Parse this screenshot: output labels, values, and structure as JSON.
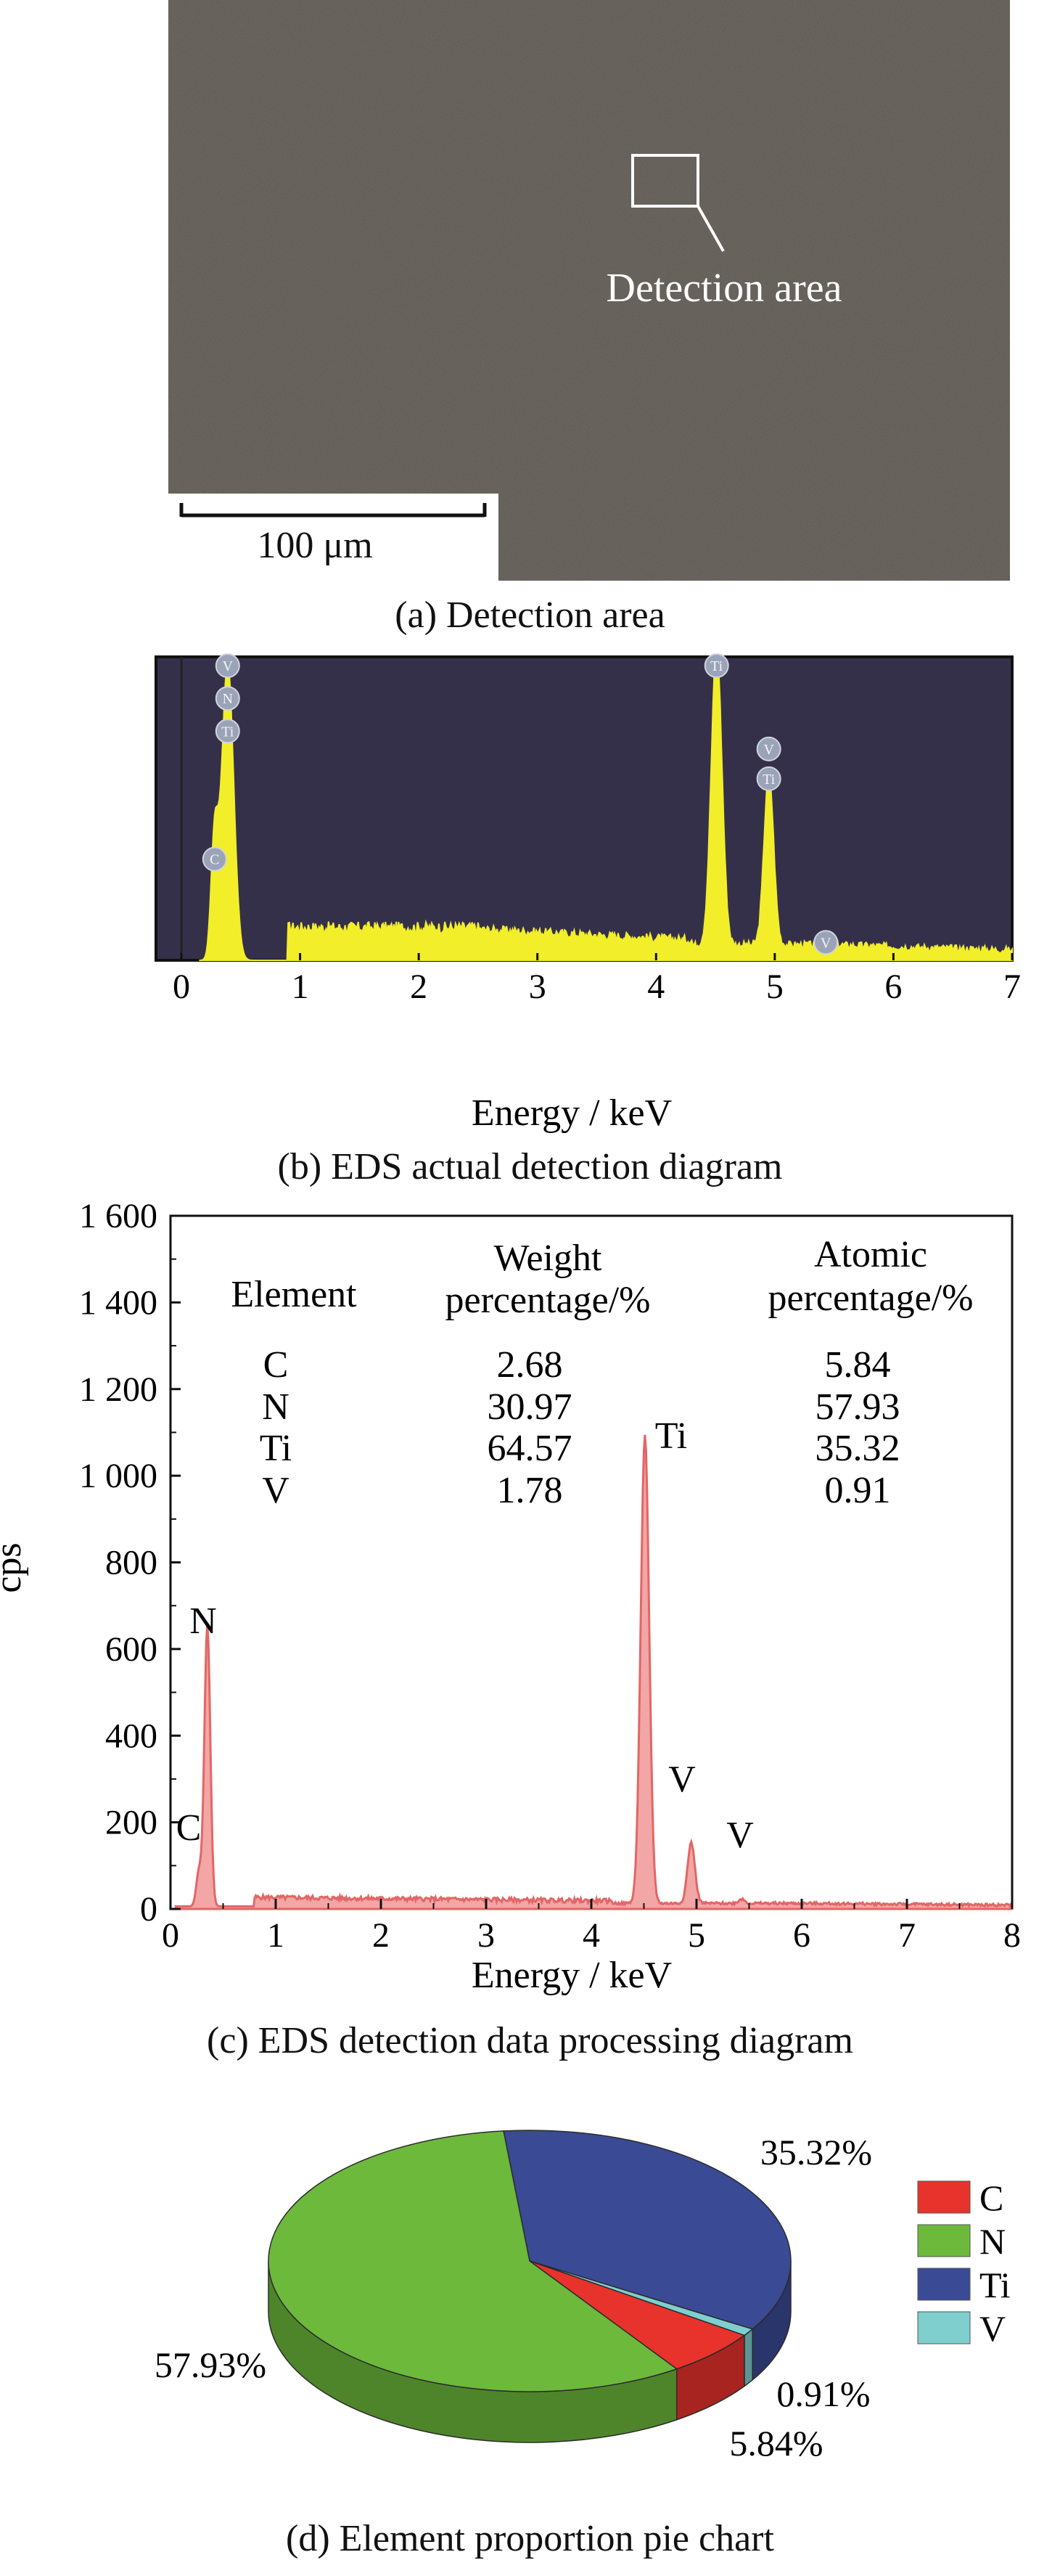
{
  "panel_a": {
    "caption": "(a) Detection area",
    "annotation": "Detection area",
    "scale_bar": "100 μm"
  },
  "panel_b": {
    "caption": "(b) EDS actual detection diagram",
    "xlabel": "Energy / keV",
    "xticks": [
      "0",
      "1",
      "2",
      "3",
      "4",
      "5",
      "6",
      "7"
    ],
    "background": "#35304a",
    "fill": "#f2ee2a",
    "peak_markers": [
      "V",
      "N",
      "Ti",
      "C",
      "Ti",
      "V",
      "Ti",
      "V"
    ]
  },
  "panel_c": {
    "caption": "(c) EDS detection data processing diagram",
    "xlabel": "Energy / keV",
    "ylabel": "cps",
    "xticks": [
      "0",
      "1",
      "2",
      "3",
      "4",
      "5",
      "6",
      "7",
      "8"
    ],
    "yticks": [
      "0",
      "200",
      "400",
      "600",
      "800",
      "1 000",
      "1 200",
      "1 400",
      "1 600"
    ],
    "peak_labels": [
      "N",
      "C",
      "Ti",
      "V",
      "V"
    ],
    "table": {
      "headers": [
        [
          "Element"
        ],
        [
          "Weight",
          "percentage/%"
        ],
        [
          "Atomic",
          "percentage/%"
        ]
      ],
      "rows": [
        [
          "C",
          "2.68",
          "5.84"
        ],
        [
          "N",
          "30.97",
          "57.93"
        ],
        [
          "Ti",
          "64.57",
          "35.32"
        ],
        [
          "V",
          "1.78",
          "0.91"
        ]
      ]
    }
  },
  "panel_d": {
    "caption": "(d) Element proportion pie chart",
    "slice_labels": [
      "35.32%",
      "57.93%",
      "0.91%",
      "5.84%"
    ],
    "legend": [
      "C",
      "N",
      "Ti",
      "V"
    ]
  },
  "chart_data": [
    {
      "type": "area",
      "xlabel": "Energy / keV",
      "xlim": [
        0,
        7
      ],
      "grid": false,
      "series": [
        {
          "x": [
            0.28,
            0.39,
            4.51,
            4.95,
            5.43
          ],
          "values": [
            40,
            100,
            100,
            58,
            3
          ]
        }
      ]
    },
    {
      "type": "area",
      "xlabel": "Energy / keV",
      "ylabel": "cps",
      "xlim": [
        0,
        8
      ],
      "ylim": [
        0,
        1600
      ],
      "grid": false,
      "series": [
        {
          "x": [
            0.27,
            0.35,
            4.51,
            4.95,
            5.43
          ],
          "values": [
            80,
            650,
            1080,
            140,
            10
          ]
        }
      ]
    },
    {
      "type": "pie",
      "categories": [
        "C",
        "N",
        "Ti",
        "V"
      ],
      "values": [
        5.84,
        57.93,
        35.32,
        0.91
      ],
      "colors": [
        "#e8322c",
        "#6cb93c",
        "#3b4a94",
        "#7fcfcf"
      ],
      "legend_position": "right"
    }
  ]
}
